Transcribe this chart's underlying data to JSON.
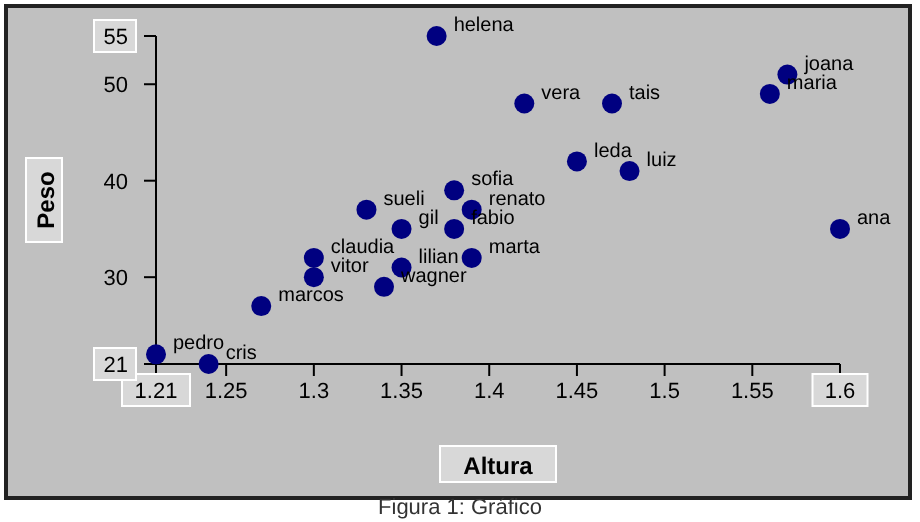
{
  "chart_data": {
    "type": "scatter",
    "xlabel": "Altura",
    "ylabel": "Peso",
    "annotations": [
      "Figura 1: Gráfico"
    ],
    "marker": "circle",
    "xlim": [
      1.21,
      1.6
    ],
    "ylim": [
      21,
      55
    ],
    "xticks": [
      1.21,
      1.25,
      1.3,
      1.35,
      1.4,
      1.45,
      1.5,
      1.55,
      1.6
    ],
    "yticks": [
      21,
      30,
      40,
      50,
      55
    ],
    "series": [
      {
        "name": "pedro",
        "color": "#000080",
        "x": [
          1.21
        ],
        "values": [
          22
        ]
      },
      {
        "name": "cris",
        "color": "#000080",
        "x": [
          1.24
        ],
        "values": [
          21
        ]
      },
      {
        "name": "marcos",
        "color": "#000080",
        "x": [
          1.27
        ],
        "values": [
          27
        ]
      },
      {
        "name": "claudia",
        "color": "#000080",
        "x": [
          1.3
        ],
        "values": [
          32
        ]
      },
      {
        "name": "vitor",
        "color": "#000080",
        "x": [
          1.3
        ],
        "values": [
          30
        ]
      },
      {
        "name": "sueli",
        "color": "#000080",
        "x": [
          1.33
        ],
        "values": [
          37
        ]
      },
      {
        "name": "gil",
        "color": "#000080",
        "x": [
          1.35
        ],
        "values": [
          35
        ]
      },
      {
        "name": "lilian",
        "color": "#000080",
        "x": [
          1.35
        ],
        "values": [
          31
        ]
      },
      {
        "name": "wagner",
        "color": "#000080",
        "x": [
          1.34
        ],
        "values": [
          29
        ]
      },
      {
        "name": "helena",
        "color": "#000080",
        "x": [
          1.37
        ],
        "values": [
          55
        ]
      },
      {
        "name": "sofia",
        "color": "#000080",
        "x": [
          1.38
        ],
        "values": [
          39
        ]
      },
      {
        "name": "renato",
        "color": "#000080",
        "x": [
          1.39
        ],
        "values": [
          37
        ]
      },
      {
        "name": "fabio",
        "color": "#000080",
        "x": [
          1.38
        ],
        "values": [
          35
        ]
      },
      {
        "name": "marta",
        "color": "#000080",
        "x": [
          1.39
        ],
        "values": [
          32
        ]
      },
      {
        "name": "vera",
        "color": "#000080",
        "x": [
          1.42
        ],
        "values": [
          48
        ]
      },
      {
        "name": "tais",
        "color": "#000080",
        "x": [
          1.47
        ],
        "values": [
          48
        ]
      },
      {
        "name": "leda",
        "color": "#000080",
        "x": [
          1.45
        ],
        "values": [
          42
        ]
      },
      {
        "name": "luiz",
        "color": "#000080",
        "x": [
          1.48
        ],
        "values": [
          41
        ]
      },
      {
        "name": "joana",
        "color": "#000080",
        "x": [
          1.57
        ],
        "values": [
          51
        ]
      },
      {
        "name": "maria",
        "color": "#000080",
        "x": [
          1.56
        ],
        "values": [
          49
        ]
      },
      {
        "name": "ana",
        "color": "#000080",
        "x": [
          1.6
        ],
        "values": [
          35
        ]
      }
    ]
  }
}
